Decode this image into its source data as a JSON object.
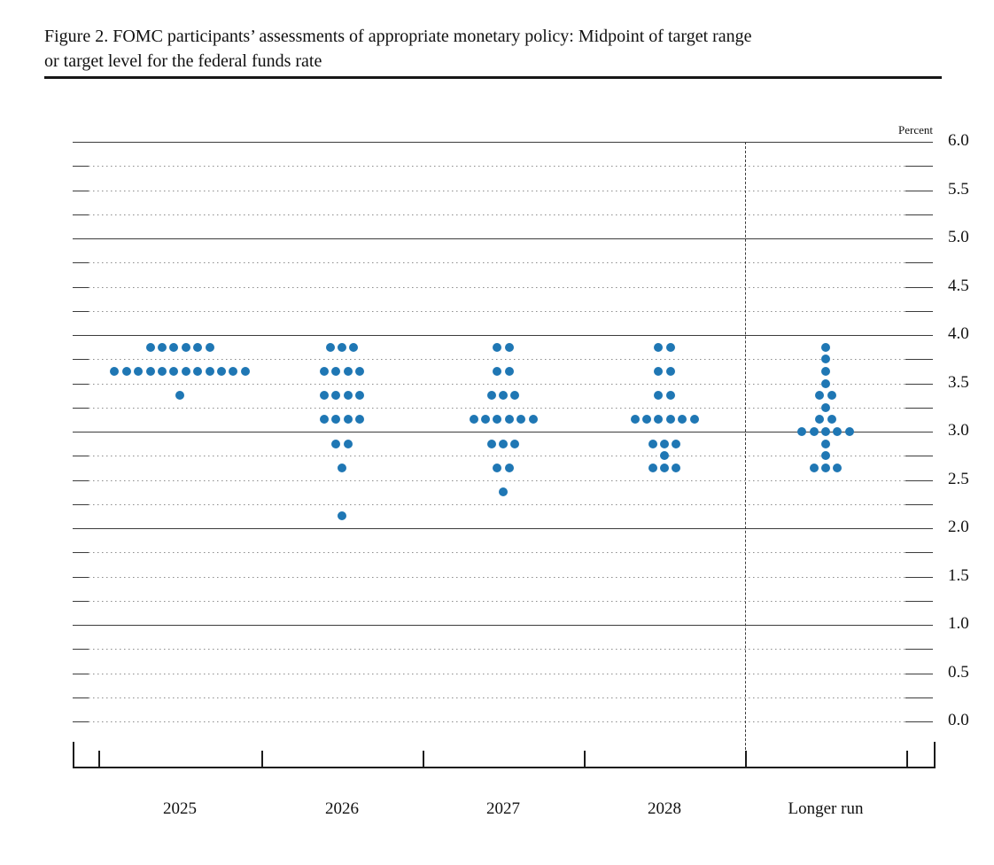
{
  "title": {
    "line1": "Figure 2. FOMC participants’ assessments of appropriate monetary policy: Midpoint of target range",
    "line2": "or target level for the federal funds rate"
  },
  "chart_data": {
    "type": "scatter",
    "title": "FOMC participants’ assessments of appropriate monetary policy: Midpoint of target range or target level for the federal funds rate",
    "unit_label": "Percent",
    "categories": [
      "2025",
      "2026",
      "2027",
      "2028",
      "Longer run"
    ],
    "separator_after_category": "2028",
    "dot_color": "#1f77b4",
    "dots_per_category_total": 19,
    "y_axis": {
      "min": 0.0,
      "max": 6.0,
      "label_step": 0.5,
      "grid_step": 0.25,
      "tick_labels": [
        "6.0",
        "5.5",
        "5.0",
        "4.5",
        "4.0",
        "3.5",
        "3.0",
        "2.5",
        "2.0",
        "1.5",
        "1.0",
        "0.5",
        "0.0"
      ],
      "solid_line_values": [
        6.0,
        5.0,
        4.0,
        3.0,
        2.0,
        1.0
      ],
      "grid": true
    },
    "legend": "none",
    "series": [
      {
        "category": "2025",
        "dots": [
          {
            "rate": 3.875,
            "count": 6
          },
          {
            "rate": 3.625,
            "count": 12
          },
          {
            "rate": 3.375,
            "count": 1
          }
        ]
      },
      {
        "category": "2026",
        "dots": [
          {
            "rate": 3.875,
            "count": 3
          },
          {
            "rate": 3.625,
            "count": 4
          },
          {
            "rate": 3.375,
            "count": 4
          },
          {
            "rate": 3.125,
            "count": 4
          },
          {
            "rate": 2.875,
            "count": 2
          },
          {
            "rate": 2.625,
            "count": 1
          },
          {
            "rate": 2.125,
            "count": 1
          }
        ]
      },
      {
        "category": "2027",
        "dots": [
          {
            "rate": 3.875,
            "count": 2
          },
          {
            "rate": 3.625,
            "count": 2
          },
          {
            "rate": 3.375,
            "count": 3
          },
          {
            "rate": 3.125,
            "count": 6
          },
          {
            "rate": 2.875,
            "count": 3
          },
          {
            "rate": 2.625,
            "count": 2
          },
          {
            "rate": 2.375,
            "count": 1
          }
        ]
      },
      {
        "category": "2028",
        "dots": [
          {
            "rate": 3.875,
            "count": 2
          },
          {
            "rate": 3.625,
            "count": 2
          },
          {
            "rate": 3.375,
            "count": 2
          },
          {
            "rate": 3.125,
            "count": 6
          },
          {
            "rate": 2.875,
            "count": 3
          },
          {
            "rate": 2.75,
            "count": 1
          },
          {
            "rate": 2.625,
            "count": 3
          }
        ]
      },
      {
        "category": "Longer run",
        "dots": [
          {
            "rate": 3.875,
            "count": 1
          },
          {
            "rate": 3.75,
            "count": 1
          },
          {
            "rate": 3.625,
            "count": 1
          },
          {
            "rate": 3.5,
            "count": 1
          },
          {
            "rate": 3.375,
            "count": 2
          },
          {
            "rate": 3.25,
            "count": 1
          },
          {
            "rate": 3.125,
            "count": 2
          },
          {
            "rate": 3.0,
            "count": 5
          },
          {
            "rate": 2.875,
            "count": 1
          },
          {
            "rate": 2.75,
            "count": 1
          },
          {
            "rate": 2.625,
            "count": 3
          }
        ]
      }
    ]
  }
}
